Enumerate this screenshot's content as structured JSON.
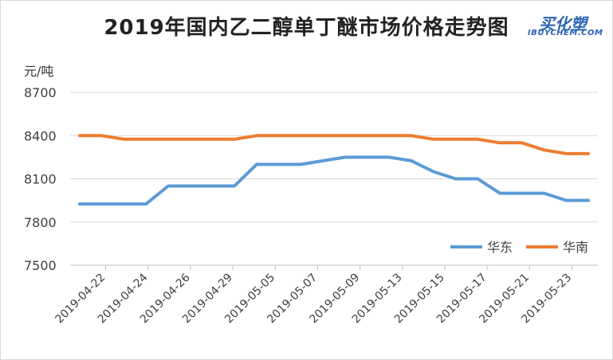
{
  "title": "2019年国内乙二醇单丁醚市场价格走势图",
  "logo": {
    "main": "买化塑",
    "sub": "IBUYCHEM.COM"
  },
  "unit": "元/吨",
  "colors": {
    "east": "#5b9bd5",
    "south": "#ed7d31",
    "grid": "#d9d9d9",
    "axis": "#bfbfbf",
    "text": "#404040"
  },
  "chart_data": {
    "type": "line",
    "y_ticks": [
      7500,
      7800,
      8100,
      8400,
      8700
    ],
    "ylim": [
      7500,
      8700
    ],
    "x_labels": [
      "2019-04-22",
      "2019-04-24",
      "2019-04-26",
      "2019-04-29",
      "2019-05-05",
      "2019-05-07",
      "2019-05-09",
      "2019-05-13",
      "2019-05-15",
      "2019-05-17",
      "2019-05-21",
      "2019-05-23"
    ],
    "series": [
      {
        "name": "华东",
        "key": "east",
        "values": [
          7925,
          7925,
          7925,
          7925,
          8050,
          8050,
          8050,
          8050,
          8200,
          8200,
          8200,
          8225,
          8250,
          8250,
          8250,
          8225,
          8150,
          8100,
          8100,
          8000,
          8000,
          8000,
          7950,
          7950
        ]
      },
      {
        "name": "华南",
        "key": "south",
        "values": [
          8400,
          8400,
          8375,
          8375,
          8375,
          8375,
          8375,
          8375,
          8400,
          8400,
          8400,
          8400,
          8400,
          8400,
          8400,
          8400,
          8375,
          8375,
          8375,
          8350,
          8350,
          8300,
          8275,
          8275
        ]
      }
    ],
    "legend_position": "bottom-right",
    "grid": true
  }
}
